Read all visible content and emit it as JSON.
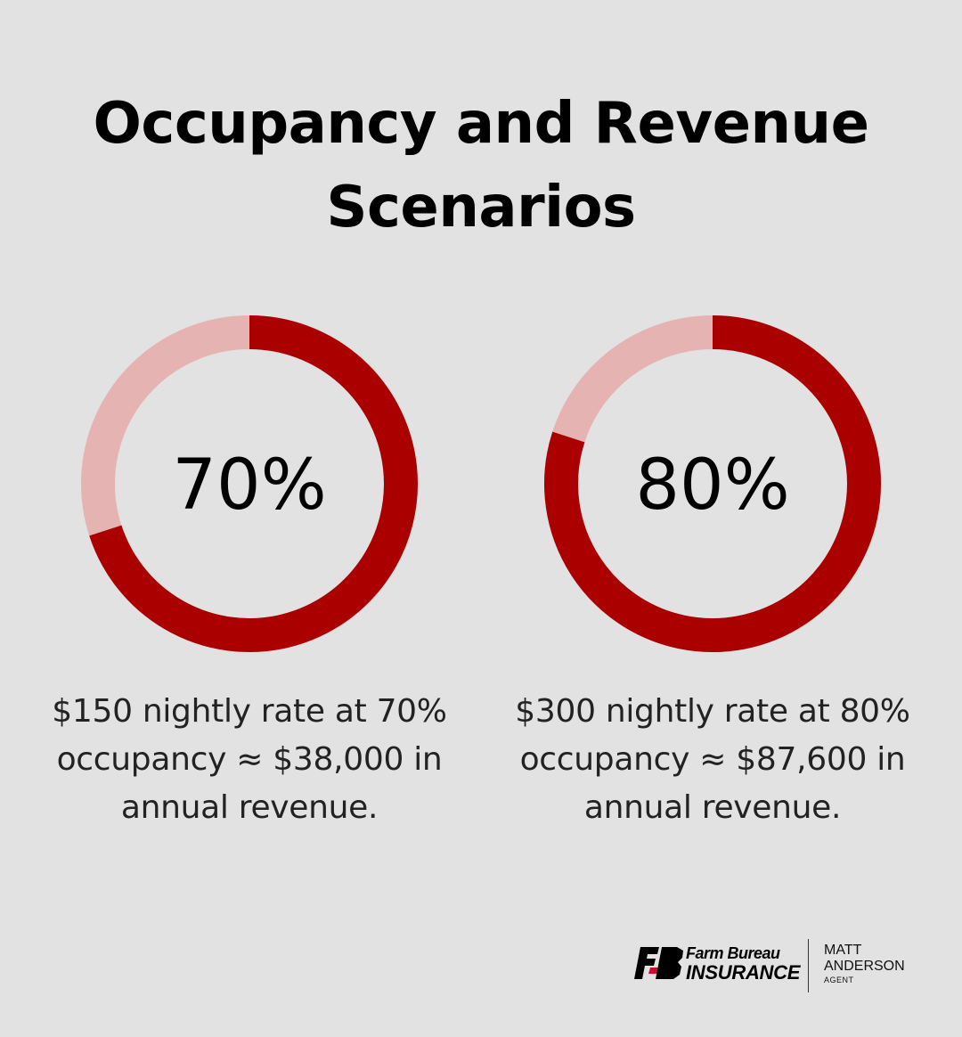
{
  "title": "Occupancy and Revenue Scenarios",
  "chart_data": [
    {
      "type": "pie",
      "variant": "donut",
      "value_percent": 70,
      "label": "70%",
      "caption": "$150 nightly rate at 70% occupancy ≈ $38,000 in annual revenue.",
      "colors": {
        "filled": "#aa0000",
        "remaining": "#e6b3b3"
      }
    },
    {
      "type": "pie",
      "variant": "donut",
      "value_percent": 80,
      "label": "80%",
      "caption": "$300 nightly rate at 80% occupancy ≈ $87,600 in annual revenue.",
      "colors": {
        "filled": "#aa0000",
        "remaining": "#e6b3b3"
      }
    }
  ],
  "footer": {
    "brand_line1": "Farm Bureau",
    "brand_line2": "INSURANCE",
    "agent_first": "MATT",
    "agent_last": "ANDERSON",
    "agent_role": "AGENT",
    "logo_colors": {
      "primary": "#000000",
      "accent": "#c8102e"
    }
  }
}
